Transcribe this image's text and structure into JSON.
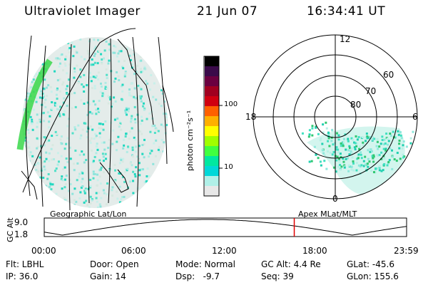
{
  "header": {
    "instrument": "Ultraviolet Imager",
    "date": "21 Jun 07",
    "time": "16:34:41 UT"
  },
  "colorbar": {
    "unit_label": "photon cm⁻²s⁻¹",
    "ticks": [
      "100",
      "10"
    ],
    "colors": [
      "#000000",
      "#3a0a4a",
      "#6a0040",
      "#a00020",
      "#d00010",
      "#ff6000",
      "#ffb000",
      "#ffff00",
      "#a0ff00",
      "#40ff40",
      "#00e8a0",
      "#00d8d8",
      "#b0f0e8",
      "#e8e8e8"
    ]
  },
  "polar": {
    "rings": [
      "60",
      "70",
      "80"
    ],
    "mlt": {
      "top": "12",
      "left": "18",
      "right": "6",
      "bottom": "0"
    }
  },
  "timeline": {
    "left_label": "Geographic Lat/Lon",
    "right_label": "Apex MLat/MLT",
    "axis_label": "GC Alt",
    "y_ticks": [
      "9.0",
      "1.8"
    ],
    "x_ticks": [
      "00:00",
      "06:00",
      "12:00",
      "18:00",
      "23:59"
    ],
    "current_time_fraction": 0.69
  },
  "status": {
    "flt": "Flt: LBHL",
    "ip": "IP: 36.0",
    "door": "Door: Open",
    "gain": "Gain: 14",
    "mode": "Mode: Normal",
    "dsp": "Dsp:   -9.7",
    "gcalt": "GC Alt: 4.4 Re",
    "seq": "Seq: 39",
    "glat": "GLat: -45.6",
    "glon": "GLon: 155.6"
  }
}
